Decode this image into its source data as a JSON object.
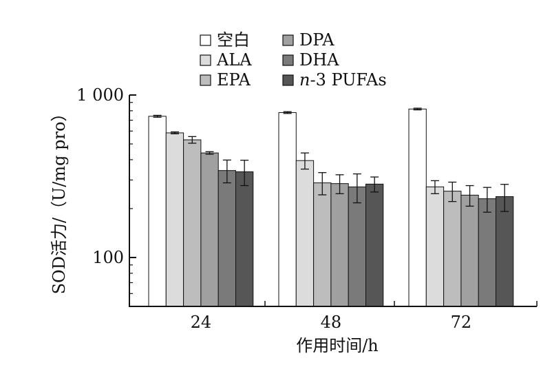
{
  "chart_data": {
    "type": "bar",
    "categories": [
      "24",
      "48",
      "72"
    ],
    "xlabel": "作用时间/h",
    "ylabel": "SOD活力/（U/mg pro）",
    "y_scale": "log",
    "ylim": [
      50,
      1000
    ],
    "yticks": [
      {
        "value": 100,
        "label": "100"
      },
      {
        "value": 1000,
        "label": "1 000"
      }
    ],
    "legend_placement": "top",
    "series": [
      {
        "name": "空白",
        "color": "#ffffff",
        "values": [
          740,
          780,
          820
        ],
        "errors": [
          10,
          10,
          10
        ]
      },
      {
        "name": "ALA",
        "color": "#dcdcdc",
        "values": [
          585,
          395,
          272
        ],
        "errors": [
          8,
          45,
          25
        ]
      },
      {
        "name": "EPA",
        "color": "#bdbdbd",
        "values": [
          530,
          288,
          256
        ],
        "errors": [
          25,
          45,
          35
        ]
      },
      {
        "name": "DPA",
        "color": "#a0a0a0",
        "values": [
          440,
          285,
          242
        ],
        "errors": [
          8,
          38,
          35
        ]
      },
      {
        "name": "DHA",
        "color": "#7a7a7a",
        "values": [
          343,
          272,
          230
        ],
        "errors": [
          55,
          55,
          40
        ]
      },
      {
        "name": "n-3 PUFAs",
        "color": "#565656",
        "values": [
          337,
          283,
          237
        ],
        "errors": [
          60,
          30,
          45
        ]
      }
    ]
  },
  "legend": {
    "items": [
      {
        "label": "空白",
        "italic_prefix": "",
        "rest": "空白"
      },
      {
        "label": "ALA",
        "italic_prefix": "",
        "rest": "ALA"
      },
      {
        "label": "EPA",
        "italic_prefix": "",
        "rest": "EPA"
      },
      {
        "label": "DPA",
        "italic_prefix": "",
        "rest": "DPA"
      },
      {
        "label": "DHA",
        "italic_prefix": "",
        "rest": "DHA"
      },
      {
        "label": "n-3 PUFAs",
        "italic_prefix": "n",
        "rest": "-3 PUFAs"
      }
    ]
  }
}
